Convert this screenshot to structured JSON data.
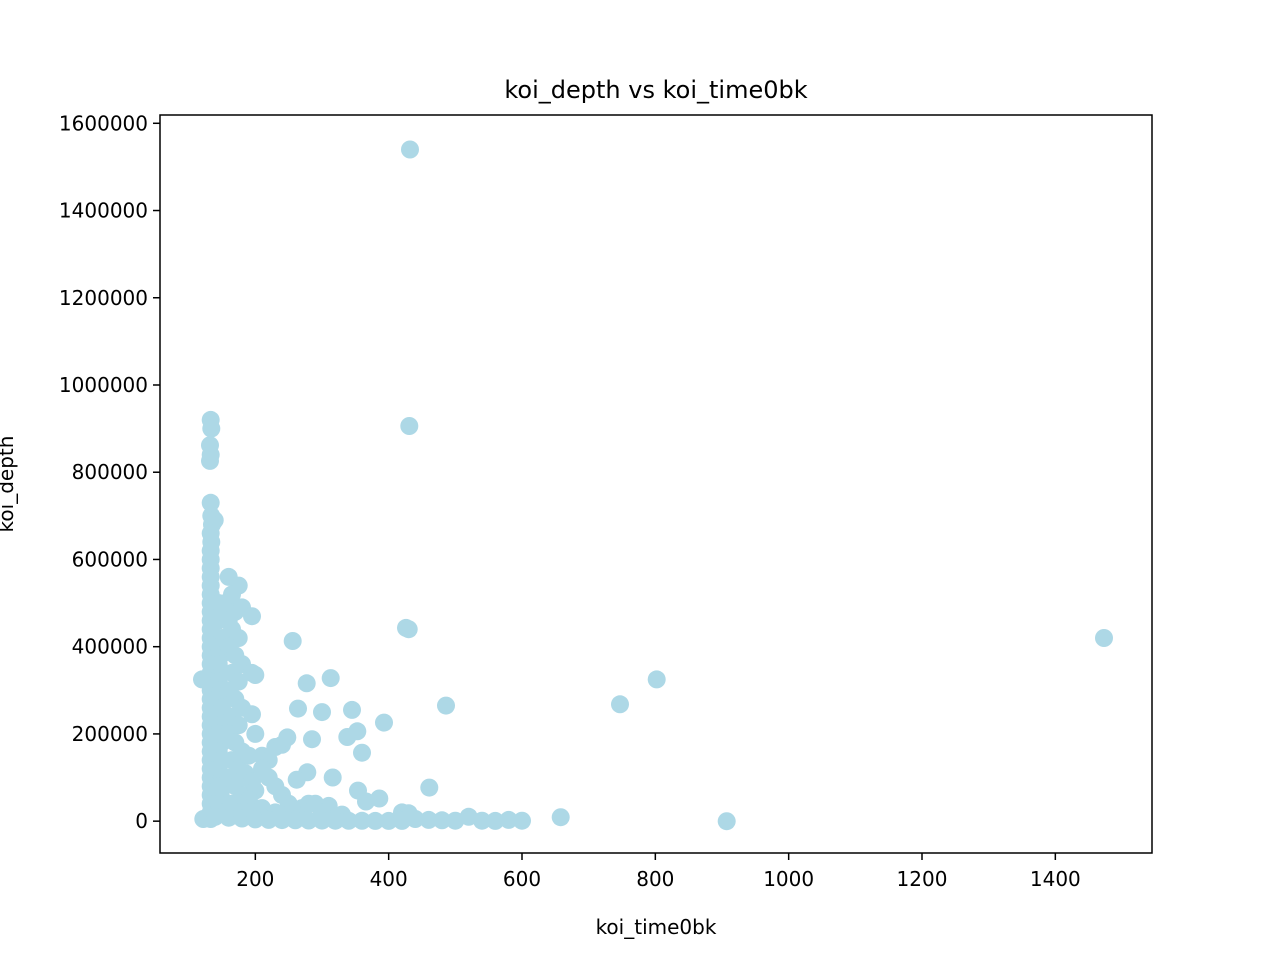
{
  "chart_data": {
    "type": "scatter",
    "title": "koi_depth vs koi_time0bk",
    "xlabel": "koi_time0bk",
    "ylabel": "koi_depth",
    "xlim": [
      57,
      1545
    ],
    "ylim": [
      -73000,
      1619000
    ],
    "xticks": [
      200,
      400,
      600,
      800,
      1000,
      1200,
      1400
    ],
    "yticks": [
      0,
      200000,
      400000,
      600000,
      800000,
      1000000,
      1200000,
      1400000,
      1600000
    ],
    "xtick_labels": [
      "200",
      "400",
      "600",
      "800",
      "1000",
      "1200",
      "1400"
    ],
    "ytick_labels": [
      "0",
      "200000",
      "400000",
      "600000",
      "800000",
      "1000000",
      "1200000",
      "1400000",
      "1600000"
    ],
    "grid": false,
    "marker_color": "#add8e6",
    "series": [
      {
        "points": [
          [
            432,
            1540000
          ],
          [
            431,
            906000
          ],
          [
            133,
            920000
          ],
          [
            134,
            900000
          ],
          [
            132,
            862000
          ],
          [
            133,
            840000
          ],
          [
            132,
            826000
          ],
          [
            133,
            730000
          ],
          [
            134,
            700000
          ],
          [
            139,
            690000
          ],
          [
            135,
            680000
          ],
          [
            133,
            660000
          ],
          [
            134,
            640000
          ],
          [
            133,
            620000
          ],
          [
            133,
            600000
          ],
          [
            133,
            580000
          ],
          [
            133,
            560000
          ],
          [
            133,
            540000
          ],
          [
            133,
            520000
          ],
          [
            133,
            500000
          ],
          [
            133,
            480000
          ],
          [
            133,
            460000
          ],
          [
            133,
            440000
          ],
          [
            133,
            420000
          ],
          [
            133,
            400000
          ],
          [
            133,
            380000
          ],
          [
            133,
            360000
          ],
          [
            133,
            340000
          ],
          [
            133,
            320000
          ],
          [
            133,
            300000
          ],
          [
            133,
            280000
          ],
          [
            133,
            260000
          ],
          [
            133,
            240000
          ],
          [
            133,
            220000
          ],
          [
            133,
            200000
          ],
          [
            133,
            180000
          ],
          [
            133,
            160000
          ],
          [
            133,
            140000
          ],
          [
            133,
            120000
          ],
          [
            133,
            100000
          ],
          [
            133,
            80000
          ],
          [
            133,
            60000
          ],
          [
            133,
            40000
          ],
          [
            133,
            20000
          ],
          [
            133,
            5000
          ],
          [
            145,
            500000
          ],
          [
            150,
            480000
          ],
          [
            145,
            460000
          ],
          [
            150,
            420000
          ],
          [
            145,
            400000
          ],
          [
            148,
            380000
          ],
          [
            145,
            360000
          ],
          [
            150,
            340000
          ],
          [
            145,
            320000
          ],
          [
            148,
            300000
          ],
          [
            145,
            280000
          ],
          [
            150,
            260000
          ],
          [
            145,
            240000
          ],
          [
            148,
            220000
          ],
          [
            145,
            200000
          ],
          [
            150,
            180000
          ],
          [
            145,
            160000
          ],
          [
            148,
            140000
          ],
          [
            145,
            120000
          ],
          [
            150,
            100000
          ],
          [
            145,
            80000
          ],
          [
            148,
            60000
          ],
          [
            145,
            40000
          ],
          [
            150,
            20000
          ],
          [
            160,
            560000
          ],
          [
            175,
            540000
          ],
          [
            165,
            520000
          ],
          [
            155,
            500000
          ],
          [
            170,
            480000
          ],
          [
            160,
            460000
          ],
          [
            180,
            490000
          ],
          [
            195,
            470000
          ],
          [
            165,
            440000
          ],
          [
            175,
            420000
          ],
          [
            160,
            400000
          ],
          [
            170,
            380000
          ],
          [
            180,
            360000
          ],
          [
            165,
            340000
          ],
          [
            175,
            320000
          ],
          [
            160,
            300000
          ],
          [
            170,
            280000
          ],
          [
            180,
            260000
          ],
          [
            165,
            240000
          ],
          [
            175,
            220000
          ],
          [
            160,
            200000
          ],
          [
            170,
            180000
          ],
          [
            180,
            160000
          ],
          [
            165,
            140000
          ],
          [
            175,
            120000
          ],
          [
            160,
            100000
          ],
          [
            170,
            80000
          ],
          [
            180,
            60000
          ],
          [
            165,
            40000
          ],
          [
            175,
            20000
          ],
          [
            195,
            340000
          ],
          [
            200,
            335000
          ],
          [
            195,
            245000
          ],
          [
            200,
            200000
          ],
          [
            190,
            150000
          ],
          [
            185,
            110000
          ],
          [
            195,
            90000
          ],
          [
            200,
            70000
          ],
          [
            190,
            50000
          ],
          [
            200,
            30000
          ],
          [
            210,
            150000
          ],
          [
            220,
            140000
          ],
          [
            230,
            170000
          ],
          [
            240,
            175000
          ],
          [
            248,
            192000
          ],
          [
            210,
            120000
          ],
          [
            220,
            100000
          ],
          [
            230,
            80000
          ],
          [
            240,
            60000
          ],
          [
            250,
            40000
          ],
          [
            210,
            30000
          ],
          [
            230,
            20000
          ],
          [
            250,
            15000
          ],
          [
            270,
            30000
          ],
          [
            280,
            40000
          ],
          [
            256,
            413000
          ],
          [
            264,
            258000
          ],
          [
            277,
            316000
          ],
          [
            278,
            112000
          ],
          [
            262,
            95000
          ],
          [
            285,
            188000
          ],
          [
            300,
            250000
          ],
          [
            313,
            328000
          ],
          [
            316,
            100000
          ],
          [
            310,
            35000
          ],
          [
            290,
            40000
          ],
          [
            300,
            20000
          ],
          [
            330,
            15000
          ],
          [
            345,
            255000
          ],
          [
            338,
            193000
          ],
          [
            353,
            206000
          ],
          [
            360,
            157000
          ],
          [
            354,
            70000
          ],
          [
            366,
            45000
          ],
          [
            386,
            52000
          ],
          [
            393,
            226000
          ],
          [
            426,
            443000
          ],
          [
            430,
            440000
          ],
          [
            486,
            265000
          ],
          [
            461,
            77000
          ],
          [
            420,
            20000
          ],
          [
            430,
            18000
          ],
          [
            440,
            5000
          ],
          [
            460,
            3000
          ],
          [
            480,
            2000
          ],
          [
            500,
            1000
          ],
          [
            520,
            10000
          ],
          [
            540,
            1000
          ],
          [
            560,
            500
          ],
          [
            580,
            3000
          ],
          [
            600,
            1000
          ],
          [
            658,
            9000
          ],
          [
            747,
            268000
          ],
          [
            802,
            325000
          ],
          [
            907,
            0
          ],
          [
            1473,
            420000
          ],
          [
            120,
            325000
          ],
          [
            122,
            5000
          ],
          [
            140,
            10000
          ],
          [
            160,
            8000
          ],
          [
            180,
            6000
          ],
          [
            200,
            4000
          ],
          [
            220,
            3000
          ],
          [
            240,
            2500
          ],
          [
            260,
            2000
          ],
          [
            280,
            1500
          ],
          [
            300,
            1200
          ],
          [
            320,
            1000
          ],
          [
            340,
            900
          ],
          [
            360,
            800
          ],
          [
            380,
            700
          ],
          [
            400,
            600
          ],
          [
            420,
            500
          ]
        ]
      }
    ]
  }
}
